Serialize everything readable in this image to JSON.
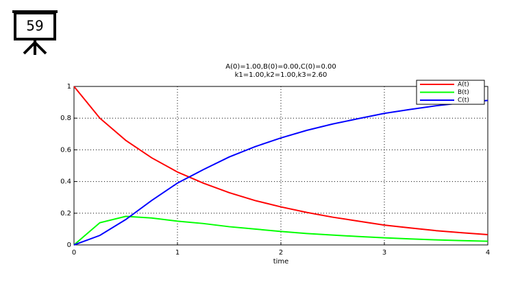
{
  "badge": "59",
  "chart_data": {
    "type": "line",
    "title": "A(0)=1.00,B(0)=0.00,C(0)=0.00",
    "subtitle": "k1=1.00,k2=1.00,k3=2.60",
    "x_label": "time",
    "x": [
      0,
      0.25,
      0.5,
      0.75,
      1,
      1.25,
      1.5,
      1.75,
      2,
      2.25,
      2.5,
      2.75,
      3,
      3.25,
      3.5,
      3.75,
      4
    ],
    "series": [
      {
        "name": "A(t)",
        "color": "#ff0000",
        "values": [
          1,
          0.8,
          0.66,
          0.55,
          0.46,
          0.39,
          0.33,
          0.28,
          0.24,
          0.205,
          0.175,
          0.15,
          0.125,
          0.107,
          0.09,
          0.077,
          0.065
        ]
      },
      {
        "name": "B(t)",
        "color": "#00ff00",
        "values": [
          0,
          0.14,
          0.18,
          0.17,
          0.15,
          0.135,
          0.115,
          0.1,
          0.085,
          0.072,
          0.062,
          0.053,
          0.045,
          0.038,
          0.032,
          0.027,
          0.023
        ]
      },
      {
        "name": "C(t)",
        "color": "#0000ff",
        "values": [
          0,
          0.06,
          0.16,
          0.28,
          0.39,
          0.475,
          0.555,
          0.62,
          0.675,
          0.723,
          0.763,
          0.797,
          0.83,
          0.855,
          0.878,
          0.896,
          0.912
        ]
      }
    ],
    "xlim": [
      0,
      4
    ],
    "xticks": [
      0,
      1,
      2,
      3,
      4
    ],
    "ylim": [
      0,
      1
    ],
    "yticks": [
      0,
      0.2,
      0.4,
      0.6,
      0.8,
      1
    ],
    "grid": true,
    "legend": "upper right"
  }
}
